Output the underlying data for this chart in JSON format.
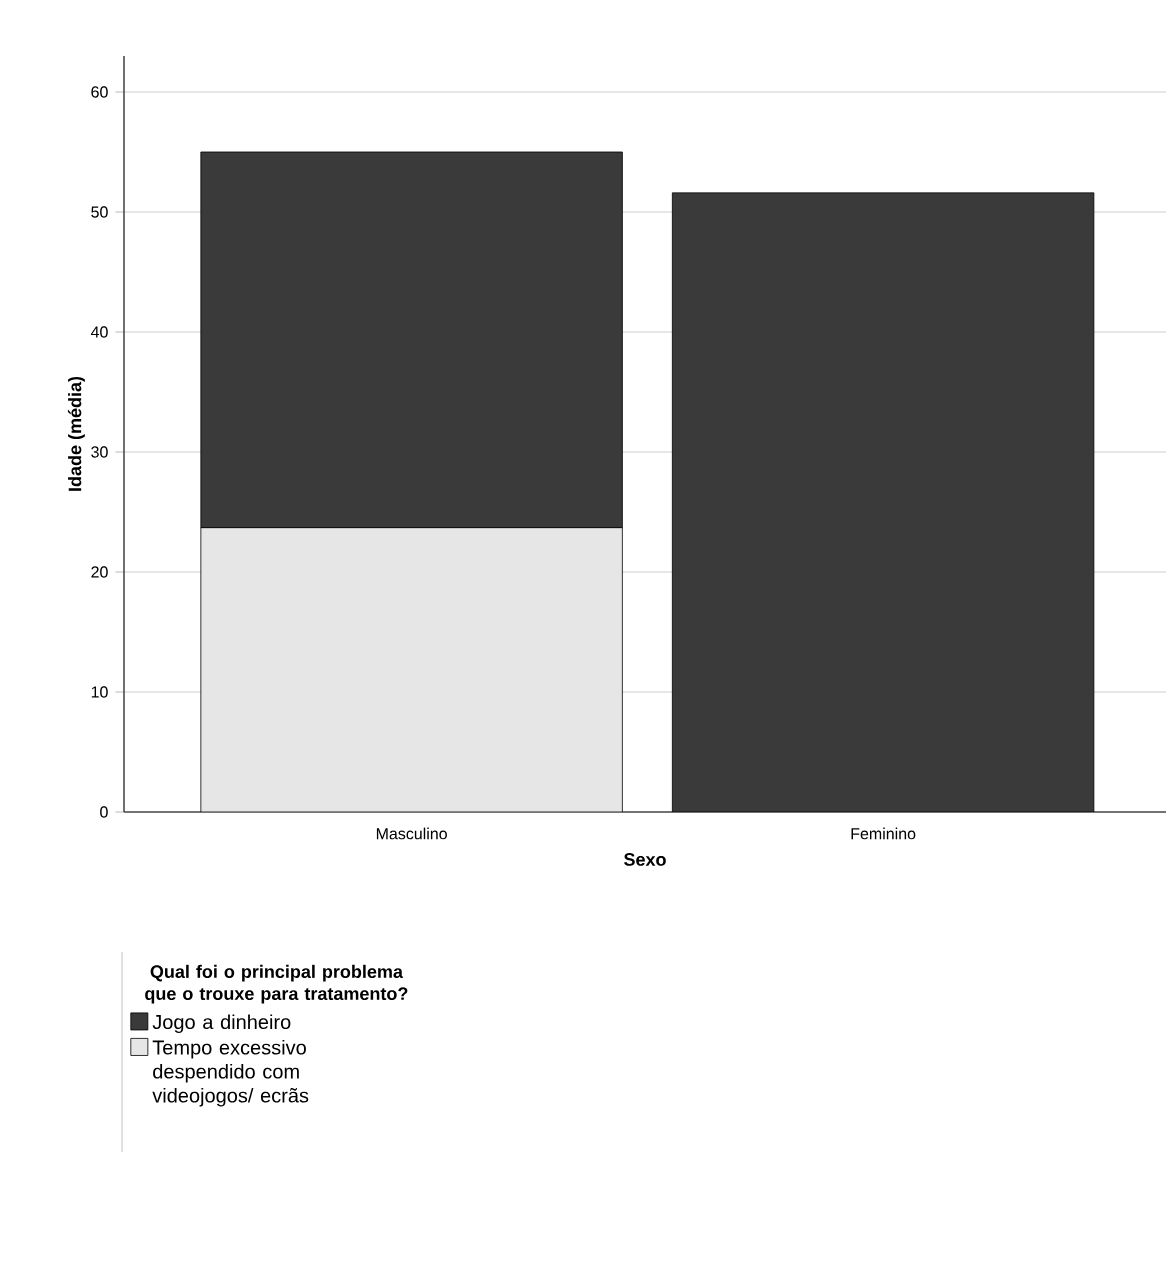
{
  "chart_data": {
    "type": "bar",
    "stacked": true,
    "xlabel": "Sexo",
    "ylabel": "Idade (média)",
    "legend_title": "Qual foi o principal problema que o trouxe para tratamento?",
    "categories": [
      "Masculino",
      "Feminino"
    ],
    "series": [
      {
        "name": "Tempo excessivo despendido com videojogos/ ecrãs",
        "color": "#e6e6e6",
        "values": [
          23.7,
          null
        ]
      },
      {
        "name": "Jogo a dinheiro",
        "color": "#3a3a3a",
        "values": [
          31.3,
          51.6
        ]
      }
    ],
    "ylim": [
      0,
      63
    ],
    "yticks": [
      0,
      10,
      20,
      30,
      40,
      50,
      60
    ],
    "grid": "y",
    "legend": "bottom left"
  }
}
